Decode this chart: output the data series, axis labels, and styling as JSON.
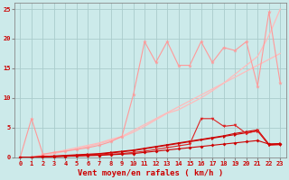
{
  "xlabel": "Vent moyen/en rafales ( km/h )",
  "xlim": [
    -0.5,
    23.5
  ],
  "ylim": [
    0,
    26
  ],
  "background_color": "#cceaea",
  "grid_color": "#aacccc",
  "x": [
    0,
    1,
    2,
    3,
    4,
    5,
    6,
    7,
    8,
    9,
    10,
    11,
    12,
    13,
    14,
    15,
    16,
    17,
    18,
    19,
    20,
    21,
    22,
    23
  ],
  "line_pink_jagged": [
    0,
    6.5,
    0.5,
    0.8,
    1.0,
    1.3,
    1.6,
    2.0,
    2.6,
    3.5,
    10.5,
    19.5,
    16.0,
    19.5,
    15.5,
    15.5,
    19.5,
    16.0,
    18.5,
    18.0,
    19.5,
    12.0,
    24.5,
    12.5
  ],
  "line_diag1": [
    0,
    0,
    0.4,
    0.8,
    1.2,
    1.6,
    2.0,
    2.4,
    3.0,
    3.5,
    4.5,
    5.5,
    6.5,
    7.5,
    8.5,
    9.5,
    10.5,
    11.5,
    12.5,
    13.5,
    14.5,
    15.5,
    16.5,
    17.5
  ],
  "line_diag2": [
    0,
    0,
    0.3,
    0.6,
    1.0,
    1.4,
    1.8,
    2.3,
    2.8,
    3.4,
    4.2,
    5.2,
    6.3,
    7.4,
    8.0,
    9.0,
    10.0,
    11.2,
    12.5,
    14.0,
    15.5,
    17.0,
    20.5,
    25.0
  ],
  "line_red1": [
    0,
    0,
    0.1,
    0.2,
    0.3,
    0.4,
    0.5,
    0.6,
    0.8,
    1.0,
    1.2,
    1.5,
    1.8,
    2.1,
    2.4,
    2.7,
    3.0,
    3.3,
    3.6,
    4.0,
    4.3,
    4.6,
    2.2,
    2.3
  ],
  "line_red2": [
    0,
    0,
    0.05,
    0.1,
    0.2,
    0.3,
    0.4,
    0.5,
    0.7,
    0.9,
    1.1,
    1.4,
    1.7,
    2.0,
    2.3,
    2.6,
    2.9,
    3.2,
    3.5,
    3.8,
    4.1,
    4.4,
    2.1,
    2.2
  ],
  "line_red3": [
    0,
    0,
    0.05,
    0.1,
    0.15,
    0.2,
    0.3,
    0.4,
    0.5,
    0.6,
    0.8,
    1.0,
    1.3,
    1.6,
    1.9,
    2.2,
    6.5,
    6.5,
    5.2,
    5.4,
    4.0,
    4.5,
    2.0,
    2.1
  ],
  "line_red4": [
    0,
    0,
    0.05,
    0.1,
    0.15,
    0.2,
    0.25,
    0.3,
    0.4,
    0.5,
    0.6,
    0.8,
    1.0,
    1.2,
    1.4,
    1.6,
    1.8,
    2.0,
    2.2,
    2.4,
    2.6,
    2.8,
    2.2,
    2.2
  ]
}
